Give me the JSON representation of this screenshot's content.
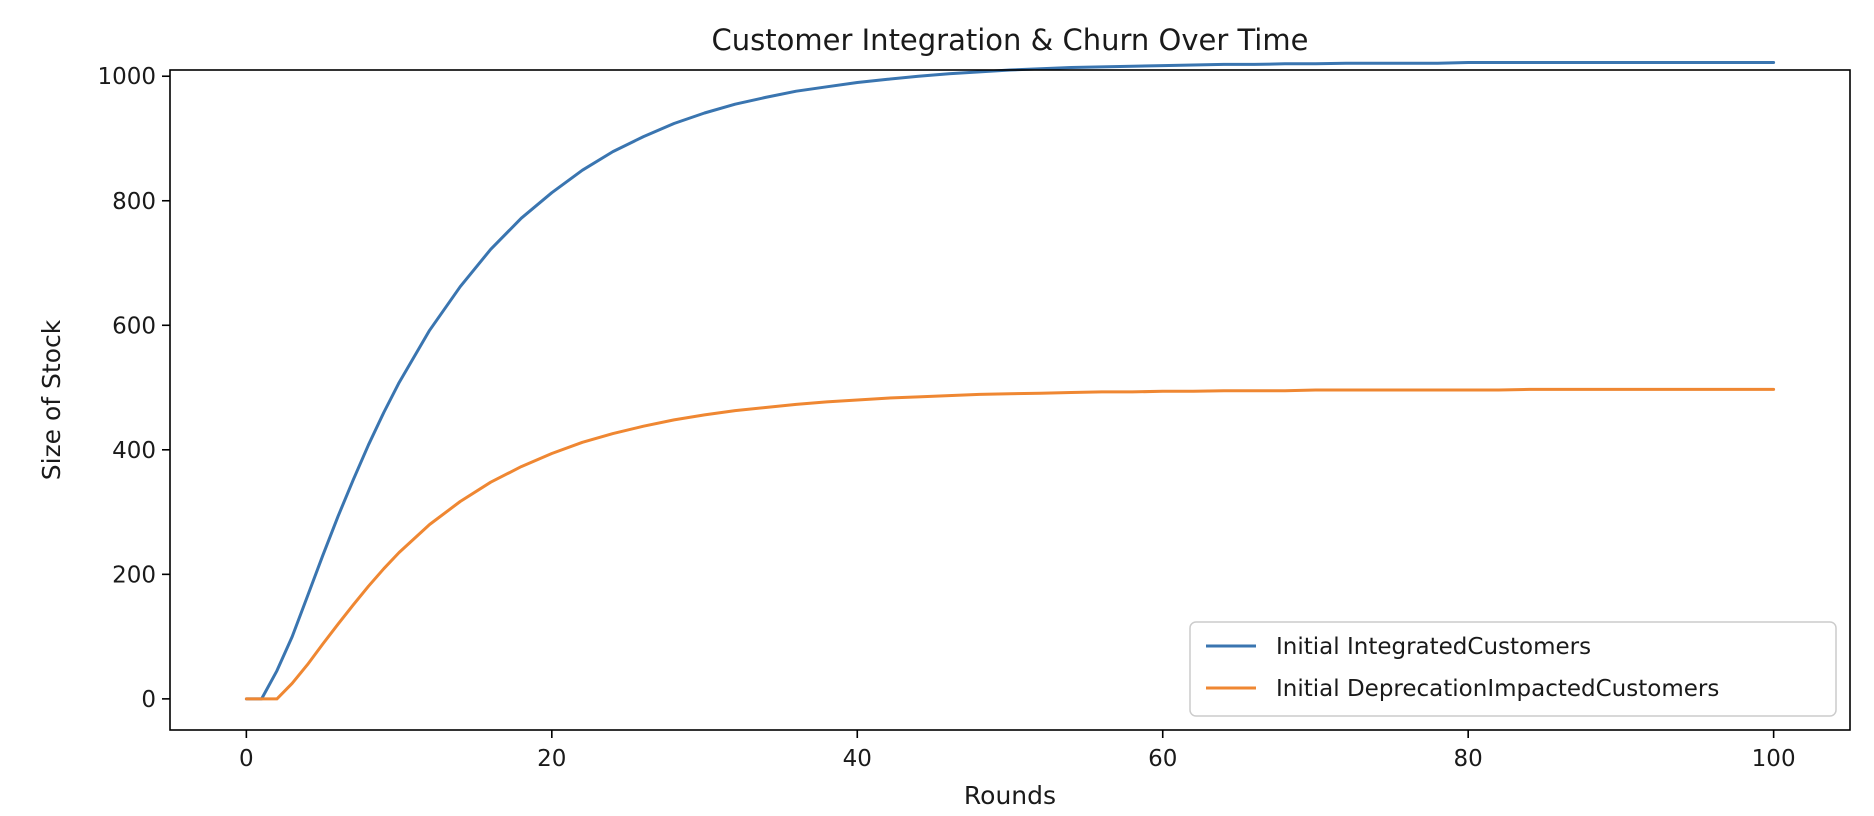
{
  "chart_data": {
    "type": "line",
    "title": "Customer Integration & Churn Over Time",
    "xlabel": "Rounds",
    "ylabel": "Size of Stock",
    "xlim": [
      -5,
      105
    ],
    "ylim": [
      -50,
      1010
    ],
    "xticks": [
      0,
      20,
      40,
      60,
      80,
      100
    ],
    "yticks": [
      0,
      200,
      400,
      600,
      800,
      1000
    ],
    "grid": false,
    "legend_position": "lower-right",
    "x": [
      0,
      1,
      2,
      3,
      4,
      5,
      6,
      7,
      8,
      9,
      10,
      12,
      14,
      16,
      18,
      20,
      22,
      24,
      26,
      28,
      30,
      32,
      34,
      36,
      38,
      40,
      42,
      44,
      46,
      48,
      50,
      52,
      54,
      56,
      58,
      60,
      62,
      64,
      66,
      68,
      70,
      72,
      74,
      76,
      78,
      80,
      82,
      84,
      86,
      88,
      90,
      92,
      94,
      96,
      98,
      100
    ],
    "series": [
      {
        "name": "Initial IntegratedCustomers",
        "color": "#3a75b0",
        "values": [
          0,
          0,
          45,
          100,
          165,
          230,
          293,
          352,
          408,
          460,
          508,
          592,
          662,
          722,
          772,
          813,
          849,
          879,
          903,
          924,
          941,
          955,
          966,
          976,
          983,
          990,
          995,
          1000,
          1004,
          1007,
          1010,
          1012,
          1014,
          1015,
          1016,
          1017,
          1018,
          1019,
          1019,
          1020,
          1020,
          1021,
          1021,
          1021,
          1021,
          1022,
          1022,
          1022,
          1022,
          1022,
          1022,
          1022,
          1022,
          1022,
          1022,
          1022
        ]
      },
      {
        "name": "Initial DeprecationImpactedCustomers",
        "color": "#ef8732",
        "values": [
          0,
          0,
          0,
          25,
          55,
          88,
          120,
          151,
          181,
          209,
          235,
          280,
          317,
          348,
          373,
          394,
          412,
          426,
          438,
          448,
          456,
          463,
          468,
          473,
          477,
          480,
          483,
          485,
          487,
          489,
          490,
          491,
          492,
          493,
          493,
          494,
          494,
          495,
          495,
          495,
          496,
          496,
          496,
          496,
          496,
          496,
          496,
          497,
          497,
          497,
          497,
          497,
          497,
          497,
          497,
          497
        ]
      }
    ]
  }
}
